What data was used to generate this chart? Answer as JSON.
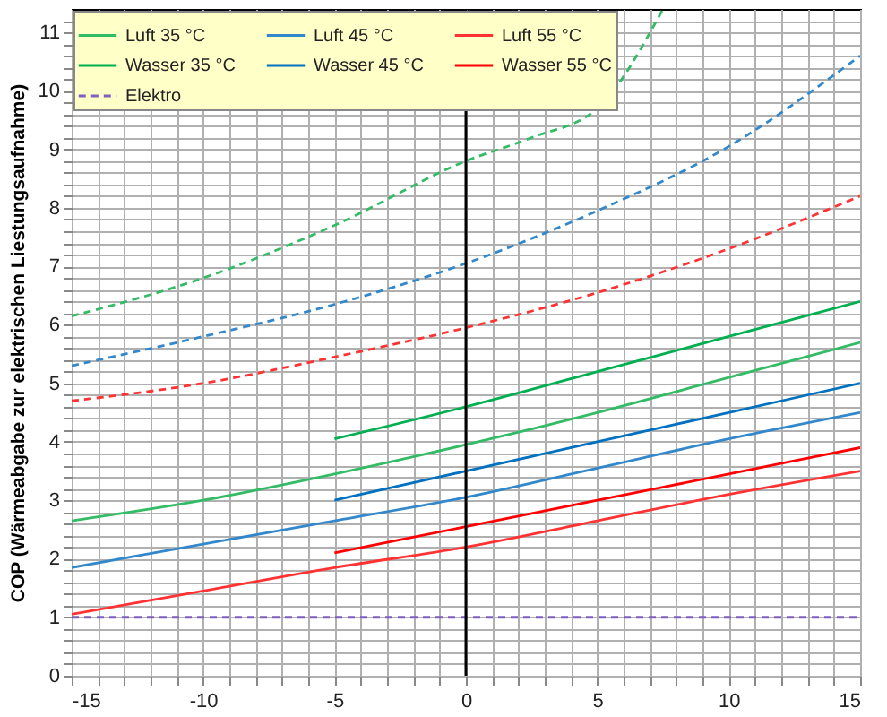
{
  "chart_data": {
    "type": "line",
    "ylabel": "COP (Wärmeabgabe zur elektrischen Liestungsaufnahme)",
    "x": [
      -15,
      -10,
      -5,
      0,
      5,
      10,
      15
    ],
    "series": [
      {
        "name": "Luft 35 °C",
        "color": "#33bb66",
        "values": [
          2.65,
          3.0,
          3.45,
          3.95,
          4.5,
          5.1,
          5.7
        ]
      },
      {
        "name": "Luft 45 °C",
        "color": "#3388cc",
        "values": [
          1.85,
          2.25,
          2.65,
          3.05,
          3.55,
          4.05,
          4.5
        ]
      },
      {
        "name": "Luft 55 °C",
        "color": "#ff3333",
        "values": [
          1.05,
          1.45,
          1.85,
          2.2,
          2.65,
          3.1,
          3.5
        ]
      },
      {
        "name": "Wasser 35 °C",
        "color": "#00b050",
        "x": [
          -5,
          0,
          5,
          10,
          15
        ],
        "values": [
          4.05,
          4.6,
          5.2,
          5.8,
          6.4
        ]
      },
      {
        "name": "Wasser 45 °C",
        "color": "#0070c0",
        "x": [
          -5,
          0,
          5,
          10,
          15
        ],
        "values": [
          3.0,
          3.5,
          4.0,
          4.5,
          5.0
        ]
      },
      {
        "name": "Wasser 55 °C",
        "color": "#ff0000",
        "x": [
          -5,
          0,
          5,
          10,
          15
        ],
        "values": [
          2.1,
          2.55,
          3.0,
          3.45,
          3.9
        ]
      },
      {
        "name": "Elektro",
        "color": "#7f5fbf",
        "line_style": "dashed",
        "values": [
          1,
          1,
          1,
          1,
          1,
          1,
          1
        ]
      },
      {
        "color": "#33bb66",
        "line_style": "dashed",
        "x": [
          -15,
          -10,
          -5,
          0,
          2.5,
          5,
          7.5
        ],
        "values": [
          6.15,
          6.8,
          7.7,
          8.8,
          9.2,
          9.7,
          11.4
        ]
      },
      {
        "color": "#3388cc",
        "line_style": "dashed",
        "values": [
          5.3,
          5.8,
          6.35,
          7.05,
          7.95,
          9.05,
          10.6
        ]
      },
      {
        "color": "#ff3333",
        "line_style": "dashed",
        "values": [
          4.7,
          5.0,
          5.45,
          5.95,
          6.55,
          7.3,
          8.2
        ]
      }
    ],
    "xlim": [
      -15,
      15
    ],
    "xticks": [
      -15,
      {
        "value": -14,
        "label": null
      },
      {
        "value": -13,
        "label": null
      },
      {
        "value": -12,
        "label": null
      },
      {
        "value": -11,
        "label": null
      },
      -10,
      {
        "value": -9,
        "label": null
      },
      {
        "value": -8,
        "label": null
      },
      {
        "value": -7,
        "label": null
      },
      {
        "value": -6,
        "label": null
      },
      -5,
      {
        "value": -4,
        "label": null
      },
      {
        "value": -3,
        "label": null
      },
      {
        "value": -2,
        "label": null
      },
      {
        "value": -1,
        "label": null
      },
      0,
      {
        "value": 1,
        "label": null
      },
      {
        "value": 2,
        "label": null
      },
      {
        "value": 3,
        "label": null
      },
      {
        "value": 4,
        "label": null
      },
      5,
      {
        "value": 6,
        "label": null
      },
      {
        "value": 7,
        "label": null
      },
      {
        "value": 8,
        "label": null
      },
      {
        "value": 9,
        "label": null
      },
      10,
      {
        "value": 11,
        "label": null
      },
      {
        "value": 12,
        "label": null
      },
      {
        "value": 13,
        "label": null
      },
      {
        "value": 14,
        "label": null
      },
      15
    ],
    "ylim": [
      0,
      11.4
    ],
    "yticks": [
      0,
      {
        "value": 0.2,
        "label": null
      },
      {
        "value": 0.4,
        "label": null
      },
      {
        "value": 0.6,
        "label": null
      },
      {
        "value": 0.8,
        "label": null
      },
      1,
      {
        "value": 1.2,
        "label": null
      },
      {
        "value": 1.4,
        "label": null
      },
      {
        "value": 1.6,
        "label": null
      },
      {
        "value": 1.8,
        "label": null
      },
      2,
      {
        "value": 2.2,
        "label": null
      },
      {
        "value": 2.4,
        "label": null
      },
      {
        "value": 2.6,
        "label": null
      },
      {
        "value": 2.8,
        "label": null
      },
      3,
      {
        "value": 3.2,
        "label": null
      },
      {
        "value": 3.4,
        "label": null
      },
      {
        "value": 3.6,
        "label": null
      },
      {
        "value": 3.8,
        "label": null
      },
      4,
      {
        "value": 4.2,
        "label": null
      },
      {
        "value": 4.4,
        "label": null
      },
      {
        "value": 4.6,
        "label": null
      },
      {
        "value": 4.8,
        "label": null
      },
      5,
      {
        "value": 5.2,
        "label": null
      },
      {
        "value": 5.4,
        "label": null
      },
      {
        "value": 5.6,
        "label": null
      },
      {
        "value": 5.8,
        "label": null
      },
      6,
      {
        "value": 6.2,
        "label": null
      },
      {
        "value": 6.4,
        "label": null
      },
      {
        "value": 6.6,
        "label": null
      },
      {
        "value": 6.8,
        "label": null
      },
      7,
      {
        "value": 7.2,
        "label": null
      },
      {
        "value": 7.4,
        "label": null
      },
      {
        "value": 7.6,
        "label": null
      },
      {
        "value": 7.8,
        "label": null
      },
      8,
      {
        "value": 8.2,
        "label": null
      },
      {
        "value": 8.4,
        "label": null
      },
      {
        "value": 8.6,
        "label": null
      },
      {
        "value": 8.8,
        "label": null
      },
      9,
      {
        "value": 9.2,
        "label": null
      },
      {
        "value": 9.4,
        "label": null
      },
      {
        "value": 9.6,
        "label": null
      },
      {
        "value": 9.8,
        "label": null
      },
      10,
      {
        "value": 10.2,
        "label": null
      },
      {
        "value": 10.4,
        "label": null
      },
      {
        "value": 10.6,
        "label": null
      },
      {
        "value": 10.8,
        "label": null
      },
      11,
      {
        "value": 11.2,
        "label": null
      }
    ],
    "ref_lines": [
      {
        "axis": "x",
        "value": 0,
        "color": "#000000"
      }
    ],
    "grid": true,
    "legend": "top left"
  }
}
